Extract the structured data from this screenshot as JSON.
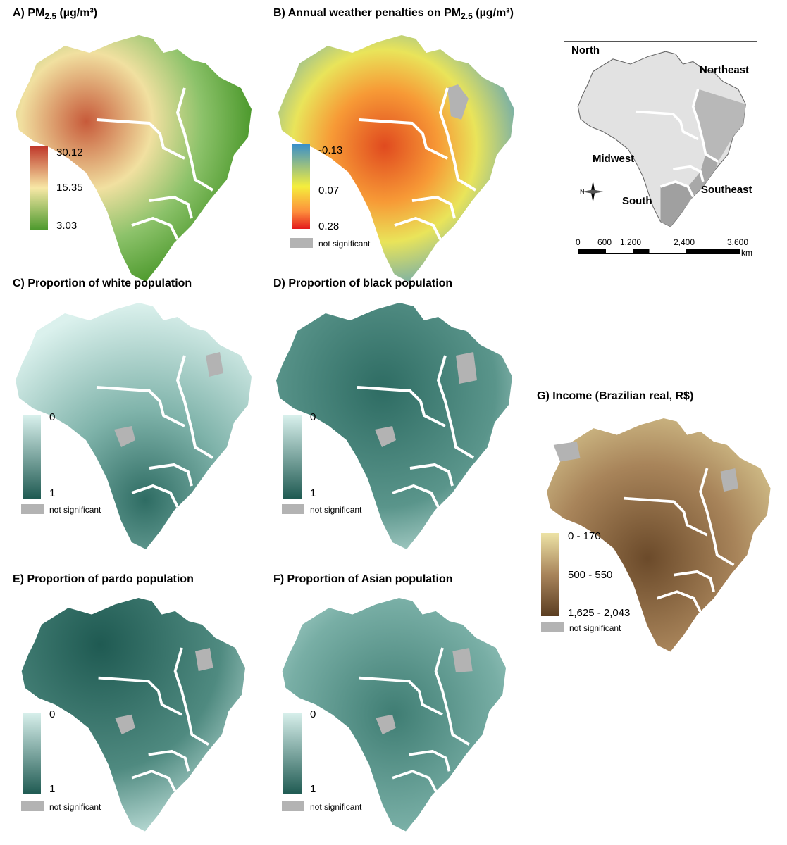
{
  "panels": {
    "A": {
      "title_main": "A) PM",
      "title_sub": "2.5",
      "title_unit": " (µg/m³)",
      "legend": [
        "30.12",
        "15.35",
        "3.03"
      ],
      "colors": [
        "#c0392b",
        "#f7e8a6",
        "#4e9a2e"
      ]
    },
    "B": {
      "title_main": "B) Annual weather penalties on PM",
      "title_sub": "2.5",
      "title_unit": " (µg/m³)",
      "legend": [
        "-0.13",
        "0.07",
        "0.28"
      ],
      "ns": "not significant",
      "colors": [
        "#3a8fc9",
        "#f5ee3c",
        "#e31a1c"
      ]
    },
    "C": {
      "title": "C) Proportion of white population",
      "legend": [
        "0",
        "1"
      ],
      "ns": "not significant"
    },
    "D": {
      "title": "D) Proportion of black population",
      "legend": [
        "0",
        "1"
      ],
      "ns": "not significant"
    },
    "E": {
      "title": "E) Proportion of pardo population",
      "legend": [
        "0",
        "1"
      ],
      "ns": "not significant"
    },
    "F": {
      "title": "F) Proportion of Asian population",
      "legend": [
        "0",
        "1"
      ],
      "ns": "not significant"
    },
    "G": {
      "title": "G) Income (Brazilian real, R$)",
      "legend": [
        "0 - 170",
        "500 - 550",
        "1,625 - 2,043"
      ],
      "ns": "not significant",
      "colors": [
        "#ede3a6",
        "#a8845a",
        "#5b3e22"
      ]
    }
  },
  "teal_colors": [
    "#d8f0ec",
    "#1f5a52"
  ],
  "ns_color": "#b3b3b3",
  "inset": {
    "regions": [
      "North",
      "Northeast",
      "Midwest",
      "Southeast",
      "South"
    ],
    "compass": "N",
    "scale": [
      "0",
      "600",
      "1,200",
      "2,400",
      "3,600"
    ],
    "scale_unit": "km"
  }
}
